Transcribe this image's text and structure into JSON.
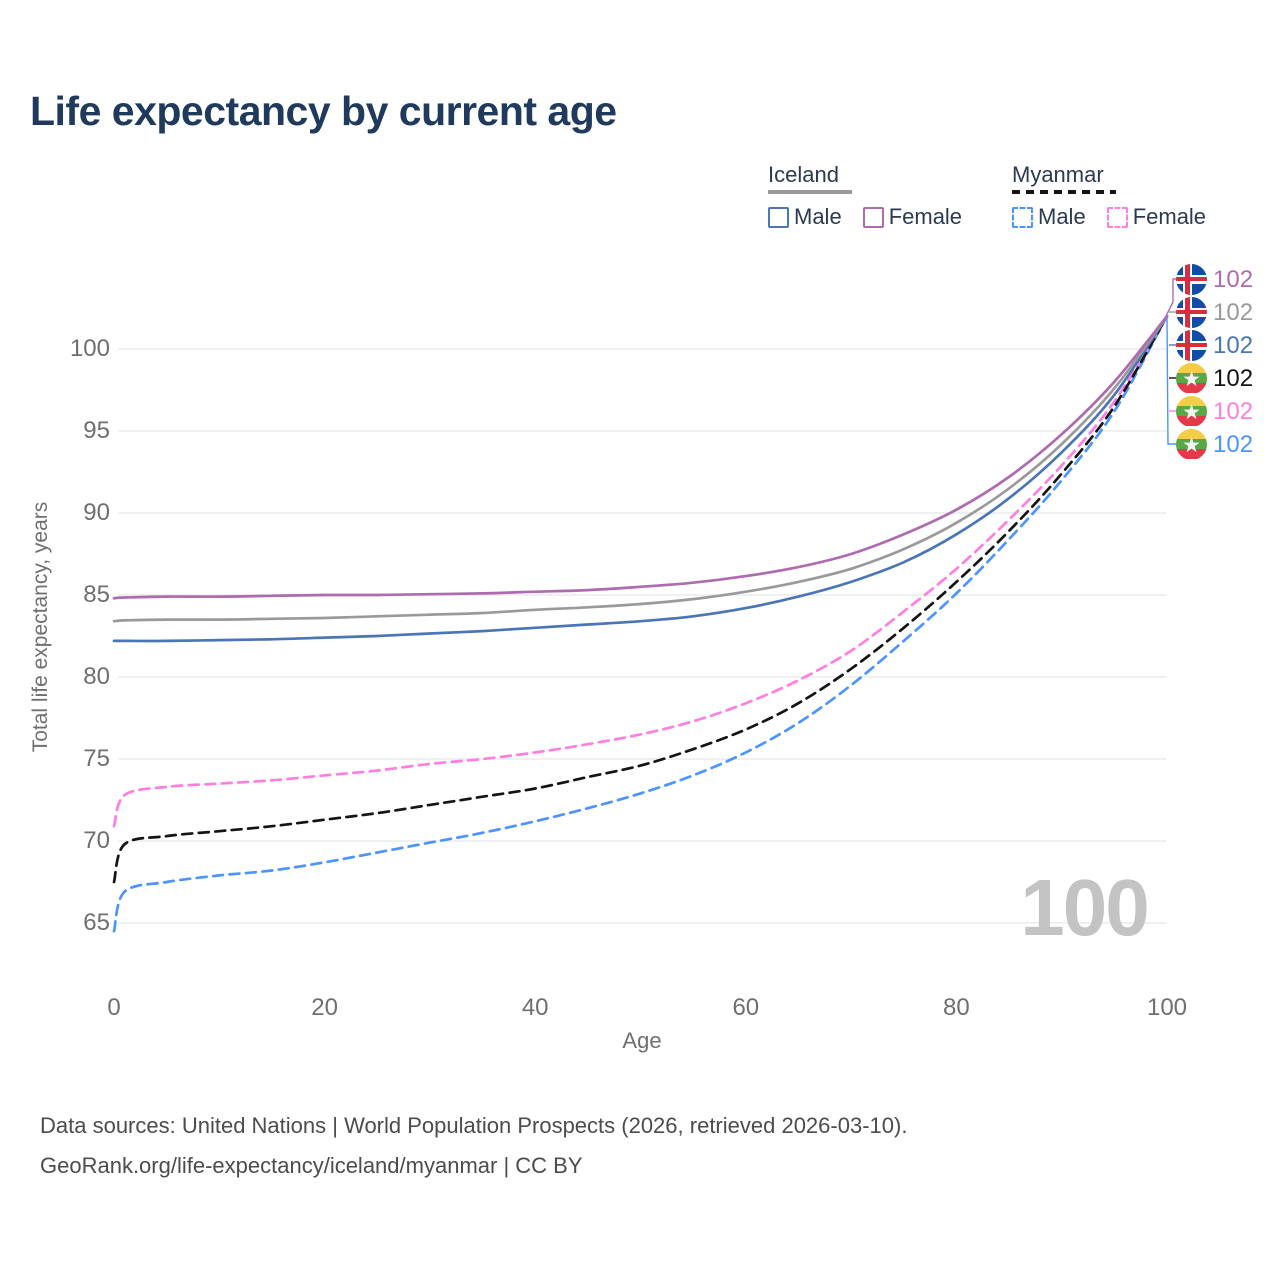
{
  "title": "Life expectancy by current age",
  "watermark": "100",
  "footer": {
    "line1": "Data sources: United Nations | World Population Prospects (2026, retrieved 2026-03-10).",
    "line2": "GeoRank.org/life-expectancy/iceland/myanmar | CC BY"
  },
  "chart_data": {
    "type": "line",
    "title": "Life expectancy by current age",
    "xlabel": "Age",
    "ylabel": "Total life expectancy, years",
    "xlim": [
      0,
      100
    ],
    "ylim": [
      63,
      103
    ],
    "xticks": [
      0,
      20,
      40,
      60,
      80,
      100
    ],
    "yticks": [
      65,
      70,
      75,
      80,
      85,
      90,
      95,
      100
    ],
    "grid": "horizontal",
    "legend_position": "top-right",
    "x": [
      0,
      1,
      5,
      10,
      15,
      20,
      25,
      30,
      35,
      40,
      45,
      50,
      55,
      60,
      65,
      70,
      75,
      80,
      85,
      90,
      95,
      100
    ],
    "series": [
      {
        "key": "iceland_female",
        "country": "Iceland",
        "sex": "Female",
        "color": "#ae6bb0",
        "dash": false,
        "values": [
          84.8,
          84.85,
          84.9,
          84.9,
          84.95,
          85.0,
          85.0,
          85.05,
          85.1,
          85.2,
          85.3,
          85.5,
          85.75,
          86.15,
          86.7,
          87.5,
          88.7,
          90.2,
          92.2,
          94.8,
          98.0,
          102
        ]
      },
      {
        "key": "iceland_combined",
        "country": "Iceland",
        "sex": "Both",
        "color": "#9a9a9a",
        "dash": false,
        "values": [
          83.4,
          83.45,
          83.5,
          83.5,
          83.55,
          83.6,
          83.7,
          83.8,
          83.9,
          84.1,
          84.25,
          84.45,
          84.75,
          85.2,
          85.8,
          86.6,
          87.8,
          89.4,
          91.5,
          94.2,
          97.6,
          102
        ]
      },
      {
        "key": "iceland_male",
        "country": "Iceland",
        "sex": "Male",
        "color": "#4a76b8",
        "dash": false,
        "values": [
          82.2,
          82.2,
          82.2,
          82.25,
          82.3,
          82.4,
          82.5,
          82.65,
          82.8,
          83.0,
          83.2,
          83.4,
          83.7,
          84.2,
          84.9,
          85.8,
          87.0,
          88.7,
          90.9,
          93.7,
          97.2,
          102
        ]
      },
      {
        "key": "myanmar_combined",
        "country": "Myanmar",
        "sex": "Both",
        "color": "#141414",
        "dash": true,
        "values": [
          67.5,
          69.8,
          70.3,
          70.6,
          70.9,
          71.3,
          71.7,
          72.2,
          72.7,
          73.2,
          73.9,
          74.6,
          75.6,
          76.8,
          78.4,
          80.5,
          83.0,
          85.8,
          88.9,
          92.4,
          96.5,
          102
        ]
      },
      {
        "key": "myanmar_female",
        "country": "Myanmar",
        "sex": "Female",
        "color": "#ff7fe1",
        "dash": true,
        "values": [
          70.9,
          72.8,
          73.3,
          73.5,
          73.7,
          74.0,
          74.3,
          74.7,
          75.0,
          75.4,
          75.9,
          76.5,
          77.3,
          78.4,
          79.8,
          81.6,
          84.0,
          86.6,
          89.6,
          92.9,
          96.8,
          102
        ]
      },
      {
        "key": "myanmar_male",
        "country": "Myanmar",
        "sex": "Male",
        "color": "#4d94ff",
        "dash": true,
        "values": [
          64.5,
          66.9,
          67.5,
          67.9,
          68.2,
          68.7,
          69.3,
          69.9,
          70.5,
          71.2,
          72.0,
          72.9,
          74.0,
          75.4,
          77.2,
          79.5,
          82.2,
          85.1,
          88.4,
          92.0,
          96.2,
          102
        ]
      }
    ],
    "legend": {
      "groups": [
        {
          "country": "Iceland",
          "underline_series": "iceland_combined",
          "items": [
            {
              "label": "Male",
              "series": "iceland_male"
            },
            {
              "label": "Female",
              "series": "iceland_female"
            }
          ]
        },
        {
          "country": "Myanmar",
          "underline_series": "myanmar_combined",
          "items": [
            {
              "label": "Male",
              "series": "myanmar_male"
            },
            {
              "label": "Female",
              "series": "myanmar_female"
            }
          ]
        }
      ]
    },
    "end_labels": [
      {
        "series": "iceland_female",
        "flag": "iceland",
        "value": "102"
      },
      {
        "series": "iceland_combined",
        "flag": "iceland",
        "value": "102"
      },
      {
        "series": "iceland_male",
        "flag": "iceland",
        "value": "102"
      },
      {
        "series": "myanmar_combined",
        "flag": "myanmar",
        "value": "102"
      },
      {
        "series": "myanmar_female",
        "flag": "myanmar",
        "value": "102"
      },
      {
        "series": "myanmar_male",
        "flag": "myanmar",
        "value": "102"
      }
    ]
  }
}
